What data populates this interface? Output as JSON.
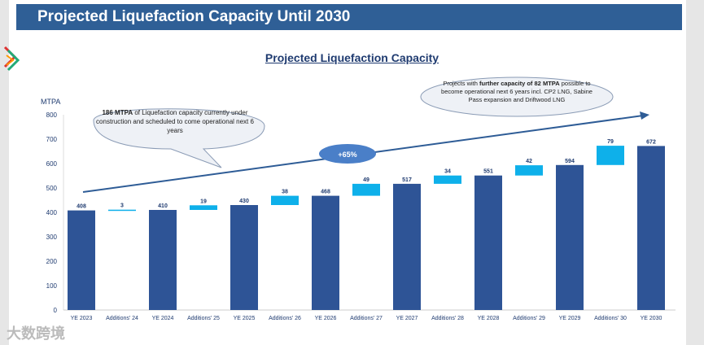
{
  "header": {
    "title": "Projected Liquefaction Capacity Until 2030"
  },
  "watermark": "大数跨境",
  "chart_data": {
    "type": "bar",
    "subtype": "waterfall",
    "title": "Projected Liquefaction Capacity",
    "ylabel": "MTPA",
    "xlabel": "",
    "ylim": [
      0,
      800
    ],
    "yticks": [
      0,
      100,
      200,
      300,
      400,
      500,
      600,
      700,
      800
    ],
    "categories": [
      "YE 2023",
      "Additions' 24",
      "YE 2024",
      "Additions' 25",
      "YE 2025",
      "Additions' 26",
      "YE 2026",
      "Additions' 27",
      "YE 2027",
      "Additions' 28",
      "YE 2028",
      "Additions' 29",
      "YE 2029",
      "Additions' 30",
      "YE 2030"
    ],
    "values": [
      408,
      3,
      410,
      19,
      430,
      38,
      468,
      49,
      517,
      34,
      551,
      42,
      594,
      79,
      672
    ],
    "kinds": [
      "total",
      "add",
      "total",
      "add",
      "total",
      "add",
      "total",
      "add",
      "total",
      "add",
      "total",
      "add",
      "total",
      "add",
      "total"
    ],
    "colors": {
      "total": "#2e5496",
      "add": "#0eb0ea"
    },
    "trend_label": "+65%",
    "callouts": [
      {
        "bold": "186 MTPA",
        "text": " of Liquefaction capacity currently under construction and scheduled to come operational next 6 years"
      },
      {
        "pre": "Projects with ",
        "bold": "further capacity of 82 MTPA",
        "text": " possible to become operational next 6 years incl. CP2 LNG, Sabine Pass expansion and Driftwood LNG"
      }
    ]
  }
}
